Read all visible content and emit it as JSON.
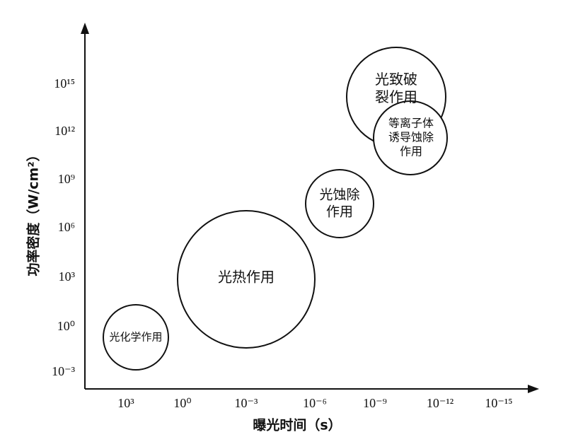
{
  "axes": {
    "y_label": "功率密度（W/cm²）",
    "x_label": "曝光时间（s）",
    "y_ticks": [
      "10⁻³",
      "10⁰",
      "10³",
      "10⁶",
      "10⁹",
      "10¹²",
      "10¹⁵"
    ],
    "x_ticks": [
      "10³",
      "10⁰",
      "10⁻³",
      "10⁻⁶",
      "10⁻⁹",
      "10⁻¹²",
      "10⁻¹⁵"
    ]
  },
  "regions": [
    {
      "lines": [
        "光化学作用"
      ]
    },
    {
      "lines": [
        "光热作用"
      ]
    },
    {
      "lines": [
        "光蚀除",
        "作用"
      ]
    },
    {
      "lines": [
        "光致破",
        "裂作用"
      ]
    },
    {
      "lines": [
        "等离子体",
        "诱导蚀除",
        "作用"
      ]
    }
  ]
}
